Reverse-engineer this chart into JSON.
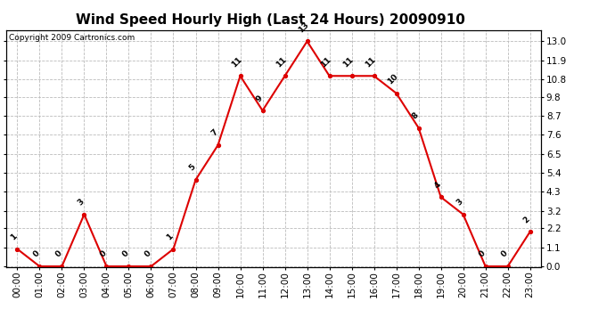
{
  "title": "Wind Speed Hourly High (Last 24 Hours) 20090910",
  "copyright": "Copyright 2009 Cartronics.com",
  "hours": [
    "00:00",
    "01:00",
    "02:00",
    "03:00",
    "04:00",
    "05:00",
    "06:00",
    "07:00",
    "08:00",
    "09:00",
    "10:00",
    "11:00",
    "12:00",
    "13:00",
    "14:00",
    "15:00",
    "16:00",
    "17:00",
    "18:00",
    "19:00",
    "20:00",
    "21:00",
    "22:00",
    "23:00"
  ],
  "values": [
    1,
    0,
    0,
    3,
    0,
    0,
    0,
    1,
    5,
    7,
    11,
    9,
    11,
    13,
    11,
    11,
    11,
    10,
    8,
    4,
    3,
    0,
    0,
    2
  ],
  "line_color": "#dd0000",
  "marker_color": "#dd0000",
  "bg_color": "#ffffff",
  "grid_color": "#bbbbbb",
  "yticks": [
    0.0,
    1.1,
    2.2,
    3.2,
    4.3,
    5.4,
    6.5,
    7.6,
    8.7,
    9.8,
    10.8,
    11.9,
    13.0
  ],
  "ylim": [
    -0.05,
    13.65
  ],
  "title_fontsize": 11,
  "copyright_fontsize": 6.5,
  "label_fontsize": 6.5,
  "tick_fontsize": 7.5
}
